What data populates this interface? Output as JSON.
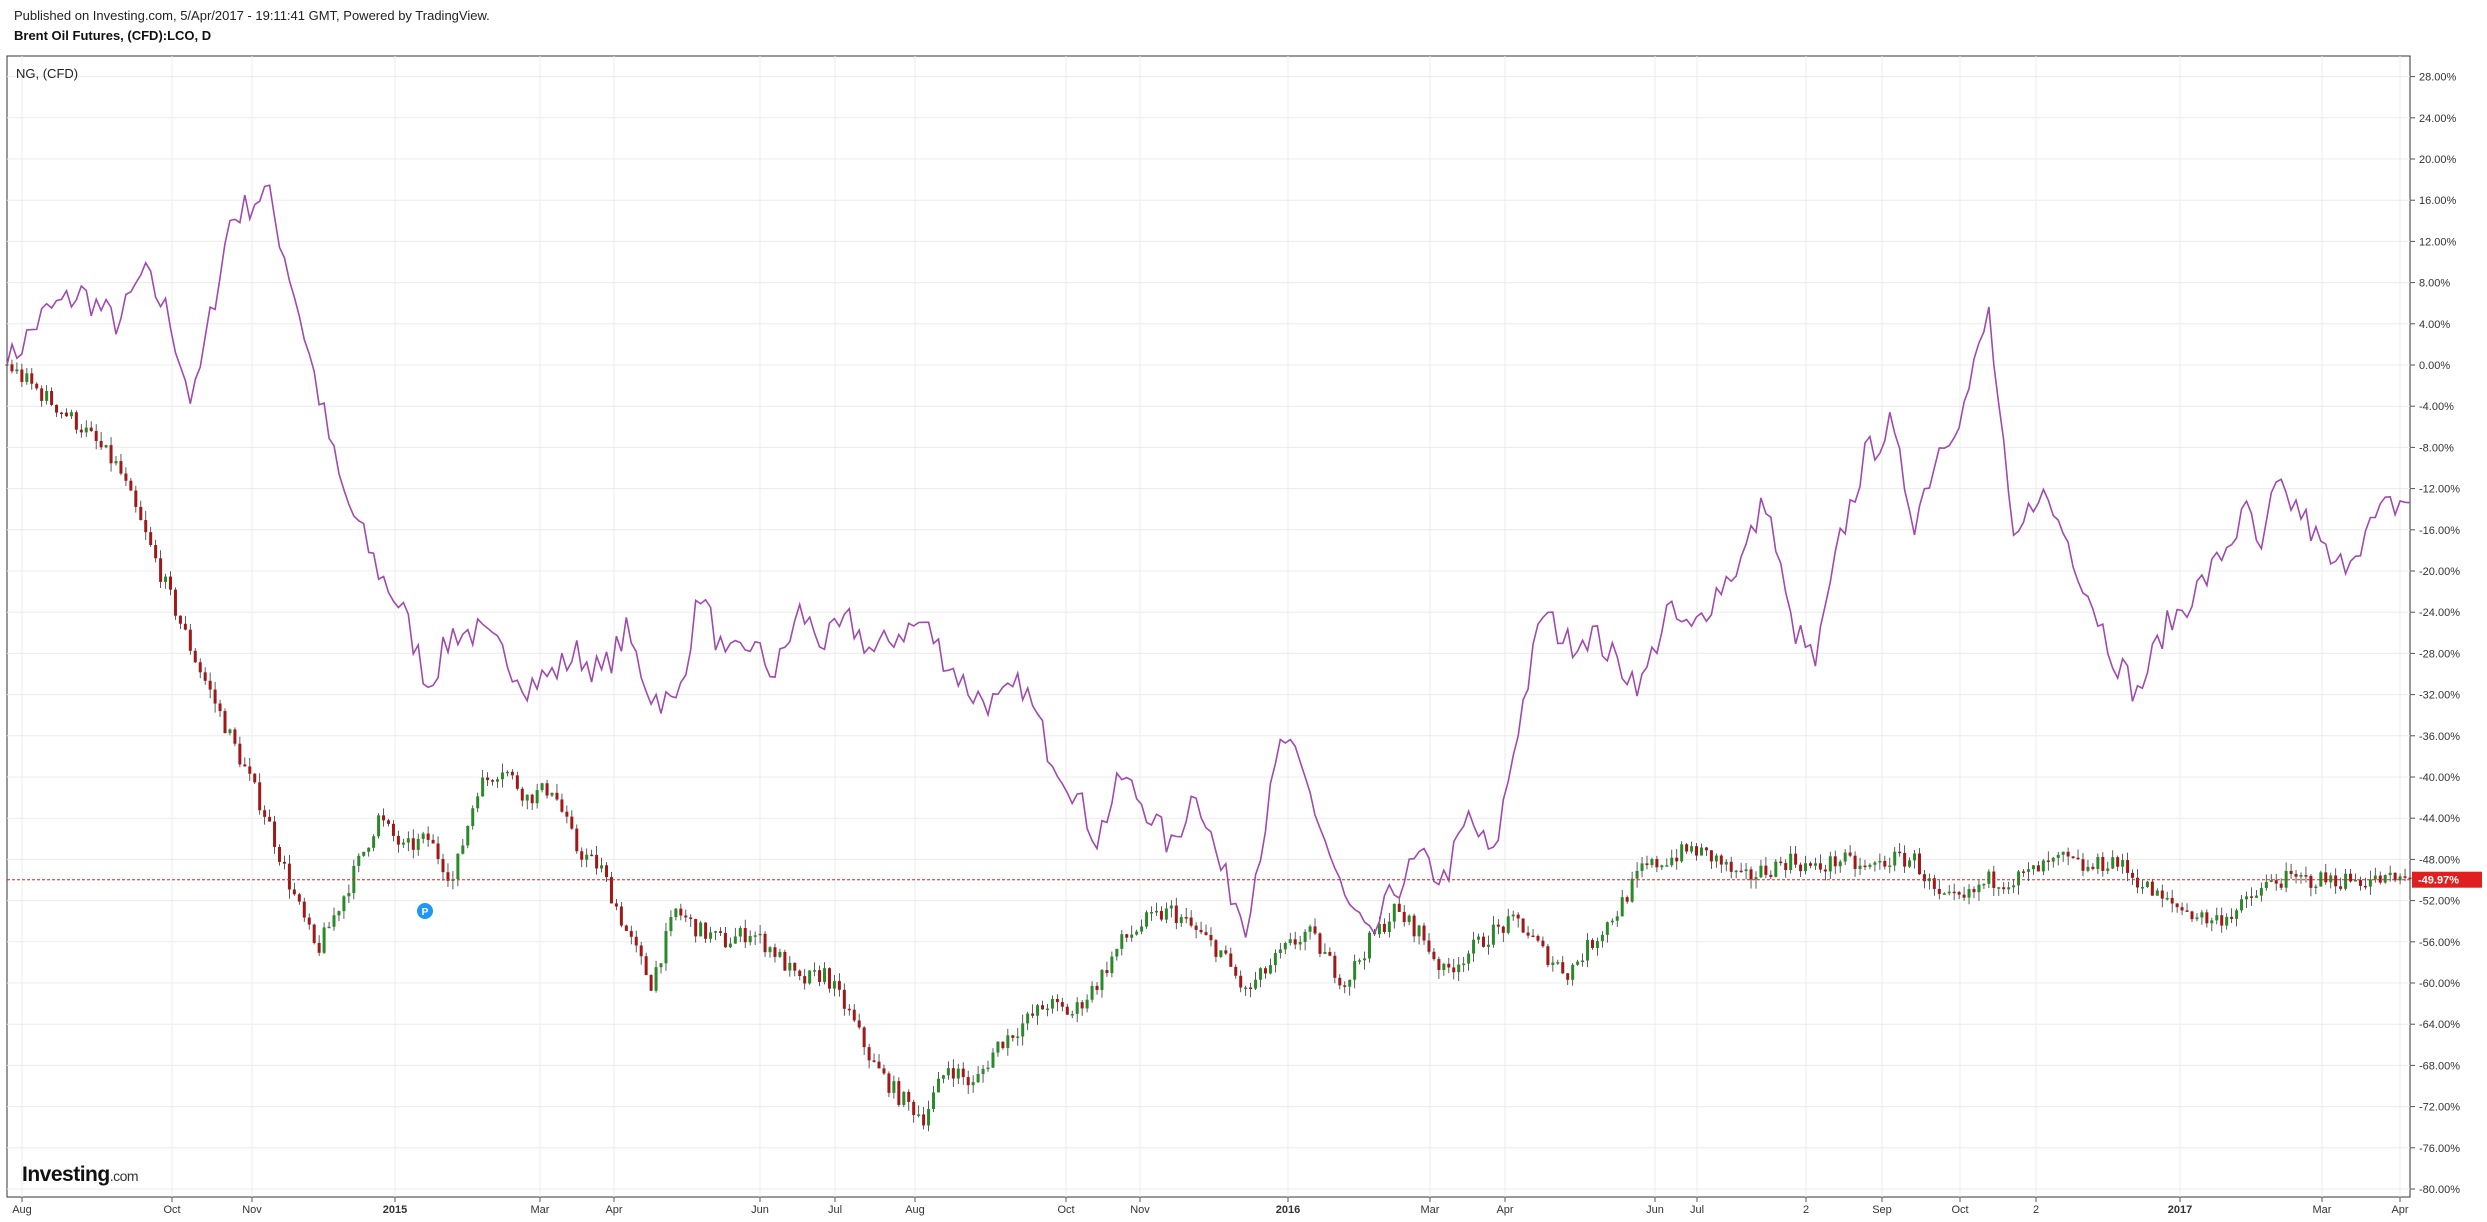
{
  "header": {
    "published": "Published on Investing.com, 5/Apr/2017 - 19:11:41 GMT, Powered by TradingView.",
    "title": "Brent Oil Futures, (CFD):LCO, D"
  },
  "logo": {
    "main": "Investing",
    "suffix": ".com"
  },
  "chart_data": {
    "type": "line",
    "title": "Brent Oil Futures, (CFD):LCO, D",
    "legend": [
      "NG,  (CFD)"
    ],
    "ylim": [
      -80,
      28
    ],
    "y_ticks": [
      "28.00%",
      "24.00%",
      "20.00%",
      "16.00%",
      "12.00%",
      "8.00%",
      "4.00%",
      "0.00%",
      "-4.00%",
      "-8.00%",
      "-12.00%",
      "-16.00%",
      "-20.00%",
      "-24.00%",
      "-28.00%",
      "-32.00%",
      "-36.00%",
      "-40.00%",
      "-44.00%",
      "-48.00%",
      "-52.00%",
      "-56.00%",
      "-60.00%",
      "-64.00%",
      "-68.00%",
      "-72.00%",
      "-76.00%",
      "-80.00%"
    ],
    "x_ticks": [
      {
        "label": "Aug",
        "bold": false
      },
      {
        "label": "Oct",
        "bold": false
      },
      {
        "label": "Nov",
        "bold": false
      },
      {
        "label": "2015",
        "bold": true
      },
      {
        "label": "Mar",
        "bold": false
      },
      {
        "label": "Apr",
        "bold": false
      },
      {
        "label": "Jun",
        "bold": false
      },
      {
        "label": "Jul",
        "bold": false
      },
      {
        "label": "Aug",
        "bold": false
      },
      {
        "label": "Oct",
        "bold": false
      },
      {
        "label": "Nov",
        "bold": false
      },
      {
        "label": "2016",
        "bold": true
      },
      {
        "label": "Mar",
        "bold": false
      },
      {
        "label": "Apr",
        "bold": false
      },
      {
        "label": "Jun",
        "bold": false
      },
      {
        "label": "Jul",
        "bold": false
      },
      {
        "label": "2",
        "bold": false
      },
      {
        "label": "Sep",
        "bold": false
      },
      {
        "label": "Oct",
        "bold": false
      },
      {
        "label": "2",
        "bold": false
      },
      {
        "label": "2017",
        "bold": true
      },
      {
        "label": "Mar",
        "bold": false
      },
      {
        "label": "Apr",
        "bold": false
      }
    ],
    "last_value_label": "-49.97%",
    "last_value": -49.97,
    "pin_marker": "P",
    "series": [
      {
        "name": "NG,  (CFD)",
        "color": "#a04aaf",
        "x_index": [
          0,
          15,
          30,
          45,
          55,
          65,
          75,
          90,
          105,
          115,
          125,
          135,
          150,
          160,
          170,
          180,
          190,
          200,
          210,
          220,
          230,
          240,
          250,
          260,
          270,
          280,
          290,
          300,
          310,
          320,
          330,
          340,
          350,
          360,
          370,
          380,
          390,
          400,
          410,
          420,
          430,
          440,
          450,
          460,
          470,
          480,
          490,
          500,
          515,
          525,
          540,
          550,
          560,
          570,
          580,
          590,
          600,
          610,
          620,
          630,
          640,
          650,
          660,
          670,
          680,
          690,
          700,
          710,
          720,
          730,
          740,
          750,
          760,
          770,
          780,
          790,
          800,
          810,
          820,
          830,
          840,
          850,
          860,
          870,
          880,
          890,
          900,
          905,
          910,
          915,
          920,
          925,
          930,
          940,
          950,
          960,
          970
        ],
        "values": [
          0,
          5,
          7,
          4,
          9,
          5,
          -4,
          14,
          17,
          8,
          -2,
          -12,
          -20,
          -24,
          -31,
          -26,
          -26,
          -28,
          -31,
          -30,
          -28,
          -30,
          -26,
          -32,
          -33,
          -22,
          -29,
          -27,
          -30,
          -24,
          -27,
          -25,
          -28,
          -26,
          -25,
          -29,
          -32,
          -33,
          -31,
          -37,
          -41,
          -46,
          -40,
          -43,
          -47,
          -41,
          -49,
          -54,
          -36,
          -41,
          -52,
          -56,
          -51,
          -48,
          -50,
          -44,
          -48,
          -35,
          -24,
          -27,
          -26,
          -29,
          -31,
          -24,
          -26,
          -22,
          -19,
          -13,
          -25,
          -29,
          -17,
          -9,
          -6,
          -15,
          -8,
          -4,
          5,
          -18,
          -12,
          -16,
          -22,
          -28,
          -32,
          -26,
          -23,
          -20,
          -16,
          -14,
          -19,
          -12,
          -13,
          -14,
          -16,
          -20,
          -17,
          -14,
          -13
        ]
      },
      {
        "name": "",
        "color": "#2a8a2a",
        "x_index": [
          0,
          15,
          30,
          45,
          55,
          65,
          75,
          90,
          105,
          115,
          125,
          135,
          150,
          160,
          170,
          180,
          190,
          200,
          210,
          220,
          230,
          240,
          250,
          260,
          270,
          280,
          290,
          300,
          310,
          320,
          330,
          340,
          350,
          360,
          370,
          380,
          390,
          400,
          410,
          420,
          430,
          440,
          450,
          460,
          470,
          480,
          490,
          500,
          515,
          525,
          540,
          550,
          560,
          570,
          580,
          590,
          600,
          610,
          620,
          630,
          640,
          650,
          660,
          670,
          680,
          690,
          700,
          710,
          720,
          730,
          740,
          750,
          760,
          770,
          780,
          790,
          800,
          810,
          820,
          830,
          840,
          850,
          860,
          870,
          880,
          890,
          900,
          905,
          910,
          915,
          920,
          925,
          930,
          940,
          950,
          960,
          970
        ],
        "values": [
          0,
          -3,
          -6,
          -10,
          -16,
          -22,
          -28,
          -36,
          -44,
          -51,
          -57,
          -52,
          -44,
          -47,
          -46,
          -50,
          -41,
          -39,
          -42,
          -41,
          -47,
          -49,
          -55,
          -60,
          -53,
          -55,
          -56,
          -55,
          -57,
          -60,
          -59,
          -63,
          -68,
          -71,
          -73,
          -68,
          -70,
          -66,
          -64,
          -62,
          -63,
          -60,
          -56,
          -54,
          -53,
          -55,
          -57,
          -61,
          -57,
          -55,
          -60,
          -56,
          -53,
          -55,
          -59,
          -57,
          -55,
          -54,
          -57,
          -59,
          -56,
          -53,
          -49,
          -48,
          -47,
          -48,
          -50,
          -49,
          -48,
          -49,
          -48,
          -49,
          -48,
          -48,
          -52,
          -52,
          -50,
          -50,
          -49,
          -48,
          -49,
          -48,
          -50,
          -52,
          -53,
          -54,
          -53,
          -52,
          -51,
          -50,
          -50,
          -50,
          -50,
          -50,
          -50,
          -50,
          -50
        ]
      }
    ]
  }
}
